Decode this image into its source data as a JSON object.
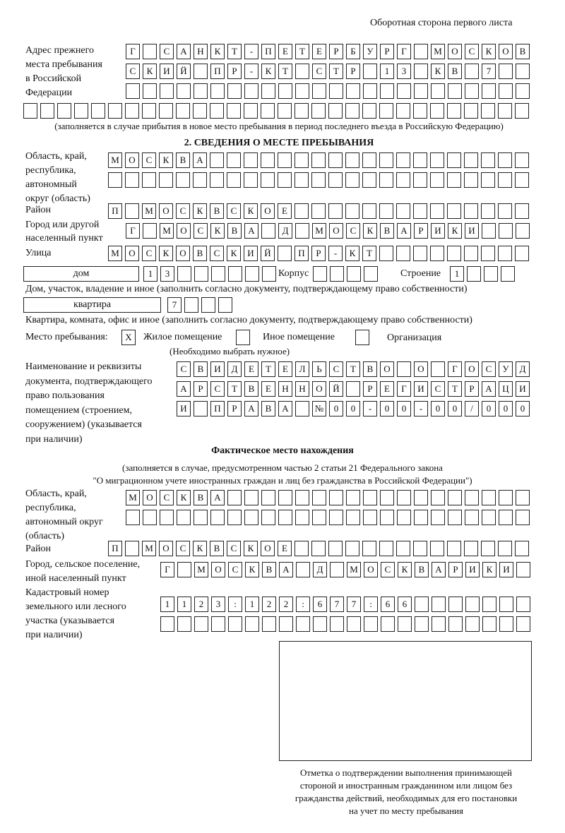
{
  "header": "Оборотная сторона первого листа",
  "prev_address": {
    "label": [
      "Адрес прежнего",
      "места пребывания",
      "в Российской",
      "Федерации"
    ],
    "rows": [
      [
        "Г",
        "",
        "С",
        "А",
        "Н",
        "К",
        "Т",
        "-",
        "П",
        "Е",
        "Т",
        "Е",
        "Р",
        "Б",
        "У",
        "Р",
        "Г",
        "",
        "М",
        "О",
        "С",
        "К",
        "О",
        "В"
      ],
      [
        "С",
        "К",
        "И",
        "Й",
        "",
        "П",
        "Р",
        "-",
        "К",
        "Т",
        "",
        "С",
        "Т",
        "Р",
        "",
        "1",
        "3",
        "",
        "К",
        "В",
        "",
        "7",
        "",
        ""
      ],
      [
        "",
        "",
        "",
        "",
        "",
        "",
        "",
        "",
        "",
        "",
        "",
        "",
        "",
        "",
        "",
        "",
        "",
        "",
        "",
        "",
        "",
        "",
        "",
        ""
      ],
      [
        "",
        "",
        "",
        "",
        "",
        "",
        "",
        "",
        "",
        "",
        "",
        "",
        "",
        "",
        "",
        "",
        "",
        "",
        "",
        "",
        "",
        "",
        "",
        "",
        "",
        "",
        "",
        "",
        "",
        ""
      ]
    ],
    "note": "(заполняется в случае прибытия в новое место пребывания в период последнего въезда в Российскую Федерацию)"
  },
  "section2": {
    "title": "2. СВЕДЕНИЯ О МЕСТЕ ПРЕБЫВАНИЯ",
    "region_label": [
      "Область, край,",
      "республика,",
      "автономный",
      "округ (область)"
    ],
    "region_rows": [
      [
        "М",
        "О",
        "С",
        "К",
        "В",
        "А",
        "",
        "",
        "",
        "",
        "",
        "",
        "",
        "",
        "",
        "",
        "",
        "",
        "",
        "",
        "",
        "",
        "",
        "",
        ""
      ],
      [
        "",
        "",
        "",
        "",
        "",
        "",
        "",
        "",
        "",
        "",
        "",
        "",
        "",
        "",
        "",
        "",
        "",
        "",
        "",
        "",
        "",
        "",
        "",
        "",
        ""
      ]
    ],
    "district_label": "Район",
    "district_row": [
      "П",
      "",
      "М",
      "О",
      "С",
      "К",
      "В",
      "С",
      "К",
      "О",
      "Е",
      "",
      "",
      "",
      "",
      "",
      "",
      "",
      "",
      "",
      "",
      "",
      "",
      "",
      ""
    ],
    "city_label": [
      "Город или другой",
      "населенный пункт"
    ],
    "city_row": [
      "Г",
      "",
      "М",
      "О",
      "С",
      "К",
      "В",
      "А",
      "",
      "Д",
      "",
      "М",
      "О",
      "С",
      "К",
      "В",
      "А",
      "Р",
      "И",
      "К",
      "И",
      "",
      "",
      ""
    ],
    "street_label": "Улица",
    "street_row": [
      "М",
      "О",
      "С",
      "К",
      "О",
      "В",
      "С",
      "К",
      "И",
      "Й",
      "",
      "П",
      "Р",
      "-",
      "К",
      "Т",
      "",
      "",
      "",
      "",
      "",
      "",
      "",
      "",
      ""
    ],
    "house_type": "дом",
    "house_cells": [
      "1",
      "3",
      "",
      "",
      "",
      "",
      "",
      ""
    ],
    "korpus_label": "Корпус",
    "korpus_cells": [
      "",
      "",
      "",
      ""
    ],
    "building_label": "Строение",
    "building_cells": [
      "1",
      "",
      "",
      ""
    ],
    "house_note": "Дом, участок, владение и иное (заполнить согласно документу, подтверждающему право собственности)",
    "apt_type": "квартира",
    "apt_cells": [
      "7",
      "",
      "",
      ""
    ],
    "apt_note": "Квартира, комната, офис и иное (заполнить согласно документу, подтверждающему право собственности)",
    "stay_label": "Место пребывания:",
    "stay_options": [
      {
        "label": "Жилое помещение",
        "mark": "X",
        "checked": true
      },
      {
        "label": "Иное помещение",
        "mark": "",
        "checked": false
      },
      {
        "label": "Организация",
        "mark": "",
        "checked": false
      }
    ],
    "stay_note": "(Необходимо выбрать нужное)",
    "doc_label": [
      "Наименование и реквизиты",
      "документа, подтверждающего",
      "право пользования",
      "помещением (строением,",
      "сооружением) (указывается",
      "при наличии)"
    ],
    "doc_rows": [
      [
        "С",
        "В",
        "И",
        "Д",
        "Е",
        "Т",
        "Е",
        "Л",
        "Ь",
        "С",
        "Т",
        "В",
        "О",
        "",
        "О",
        "",
        "Г",
        "О",
        "С",
        "У",
        "Д"
      ],
      [
        "А",
        "Р",
        "С",
        "Т",
        "В",
        "Е",
        "Н",
        "Н",
        "О",
        "Й",
        "",
        "Р",
        "Е",
        "Г",
        "И",
        "С",
        "Т",
        "Р",
        "А",
        "Ц",
        "И"
      ],
      [
        "И",
        "",
        "П",
        "Р",
        "А",
        "В",
        "А",
        "",
        "№",
        "0",
        "0",
        "-",
        "0",
        "0",
        "-",
        "0",
        "0",
        "/",
        "0",
        "0",
        "0"
      ]
    ]
  },
  "actual": {
    "title": "Фактическое место нахождения",
    "note": [
      "(заполняется в случае, предусмотренном частью 2 статьи 21 Федерального закона",
      "\"О миграционном учете иностранных граждан и лиц без гражданства в Российской Федерации\")"
    ],
    "region_label": [
      "Область, край,",
      "республика,",
      "автономный округ",
      "(область)"
    ],
    "region_rows": [
      [
        "М",
        "О",
        "С",
        "К",
        "В",
        "А",
        "",
        "",
        "",
        "",
        "",
        "",
        "",
        "",
        "",
        "",
        "",
        "",
        "",
        "",
        "",
        "",
        "",
        ""
      ],
      [
        "",
        "",
        "",
        "",
        "",
        "",
        "",
        "",
        "",
        "",
        "",
        "",
        "",
        "",
        "",
        "",
        "",
        "",
        "",
        "",
        "",
        "",
        "",
        ""
      ]
    ],
    "district_label": "Район",
    "district_row": [
      "П",
      "",
      "М",
      "О",
      "С",
      "К",
      "В",
      "С",
      "К",
      "О",
      "Е",
      "",
      "",
      "",
      "",
      "",
      "",
      "",
      "",
      "",
      "",
      "",
      "",
      "",
      ""
    ],
    "city_label": [
      "Город, сельское поселение,",
      "иной населенный пункт"
    ],
    "city_row": [
      "Г",
      "",
      "М",
      "О",
      "С",
      "К",
      "В",
      "А",
      "",
      "Д",
      "",
      "М",
      "О",
      "С",
      "К",
      "В",
      "А",
      "Р",
      "И",
      "К",
      "И",
      ""
    ],
    "cadastral_label": [
      "Кадастровый номер",
      "земельного или лесного",
      "участка (указывается",
      "при наличии)"
    ],
    "cadastral_rows": [
      [
        "1",
        "1",
        "2",
        "3",
        ":",
        "1",
        "2",
        "2",
        ":",
        "6",
        "7",
        "7",
        ":",
        "6",
        "6",
        "",
        "",
        "",
        "",
        "",
        "",
        ""
      ],
      [
        "",
        "",
        "",
        "",
        "",
        "",
        "",
        "",
        "",
        "",
        "",
        "",
        "",
        "",
        "",
        "",
        "",
        "",
        "",
        "",
        "",
        ""
      ]
    ]
  },
  "confirmation": {
    "caption": [
      "Отметка о подтверждении выполнения принимающей",
      "стороной и иностранным гражданином или лицом без",
      "гражданства действий, необходимых для его постановки",
      "на учет по месту пребывания"
    ]
  }
}
